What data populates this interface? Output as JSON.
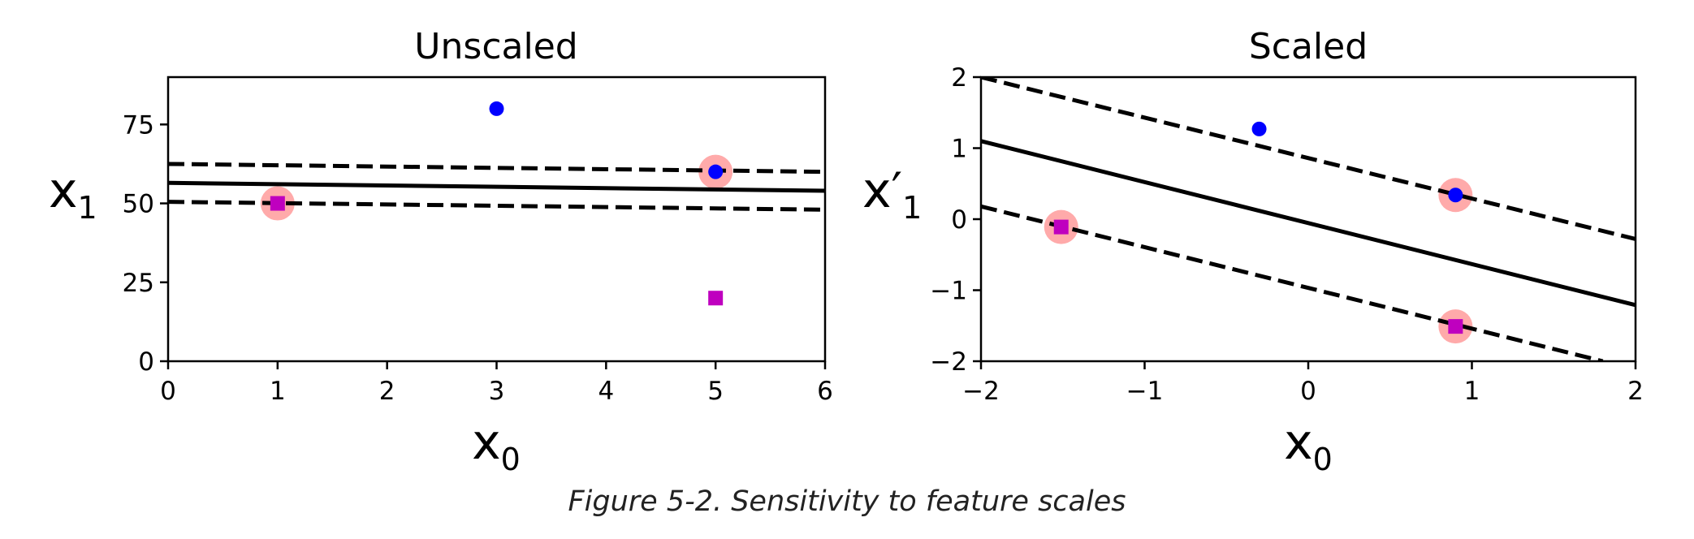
{
  "caption": "Figure 5-2. Sensitivity to feature scales",
  "chart_data": [
    {
      "type": "scatter",
      "title": "Unscaled",
      "xlabel": "x0",
      "ylabel": "x1",
      "xlim": [
        0,
        6
      ],
      "ylim": [
        0,
        90
      ],
      "xticks": [
        0,
        1,
        2,
        3,
        4,
        5,
        6
      ],
      "yticks": [
        0,
        25,
        50,
        75
      ],
      "xtick_labels": [
        "0",
        "1",
        "2",
        "3",
        "4",
        "5",
        "6"
      ],
      "ytick_labels": [
        "0",
        "25",
        "50",
        "75"
      ],
      "grid": false,
      "series": [
        {
          "marker": "circle",
          "color": "#0000ff",
          "points": [
            [
              3,
              80
            ],
            [
              5,
              60
            ]
          ]
        },
        {
          "marker": "square",
          "color": "#bf00bf",
          "points": [
            [
              1,
              50
            ],
            [
              5,
              20
            ]
          ]
        }
      ],
      "support_vectors": [
        [
          1,
          50
        ],
        [
          5,
          60
        ]
      ],
      "support_vector_color": "#ffaaaa",
      "lines": [
        {
          "style": "solid",
          "x": [
            0,
            6
          ],
          "y": [
            56.5,
            54.0
          ]
        },
        {
          "style": "dashed",
          "x": [
            0,
            6
          ],
          "y": [
            62.5,
            60.0
          ]
        },
        {
          "style": "dashed",
          "x": [
            0,
            6
          ],
          "y": [
            50.5,
            48.0
          ]
        }
      ]
    },
    {
      "type": "scatter",
      "title": "Scaled",
      "xlabel": "x0",
      "ylabel": "x'1",
      "xlim": [
        -2,
        2
      ],
      "ylim": [
        -2,
        2
      ],
      "xticks": [
        -2,
        -1,
        0,
        1,
        2
      ],
      "yticks": [
        -2,
        -1,
        0,
        1,
        2
      ],
      "xtick_labels": [
        "−2",
        "−1",
        "0",
        "1",
        "2"
      ],
      "ytick_labels": [
        "−2",
        "−1",
        "0",
        "1",
        "2"
      ],
      "grid": false,
      "series": [
        {
          "marker": "circle",
          "color": "#0000ff",
          "points": [
            [
              -0.3,
              1.27
            ],
            [
              0.9,
              0.34
            ]
          ]
        },
        {
          "marker": "square",
          "color": "#bf00bf",
          "points": [
            [
              -1.51,
              -0.11
            ],
            [
              0.9,
              -1.51
            ]
          ]
        }
      ],
      "support_vectors": [
        [
          0.9,
          0.34
        ],
        [
          -1.51,
          -0.11
        ],
        [
          0.9,
          -1.51
        ]
      ],
      "support_vector_color": "#ffaaaa",
      "lines": [
        {
          "style": "solid",
          "x": [
            -2,
            2
          ],
          "y": [
            1.1,
            -1.21
          ]
        },
        {
          "style": "dashed",
          "x": [
            -2,
            2
          ],
          "y": [
            2.0,
            -0.28
          ]
        },
        {
          "style": "dashed",
          "x": [
            -2,
            1.8
          ],
          "y": [
            0.18,
            -2.0
          ]
        }
      ]
    }
  ]
}
